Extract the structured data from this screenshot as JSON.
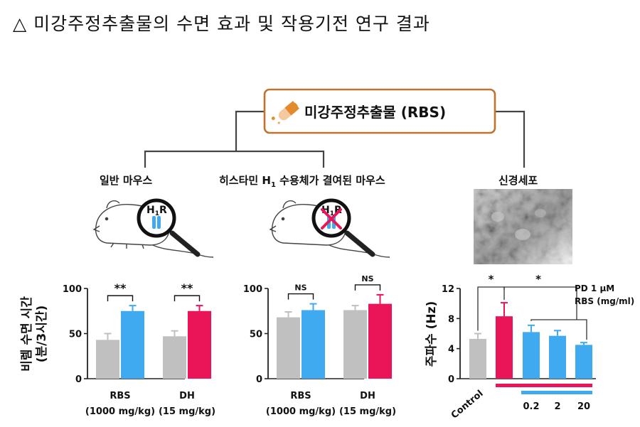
{
  "title": "△ 미강주정추출물의 수면 효과 및 작용기전 연구 결과",
  "diagram": {
    "root_label": "미강주정추출물 (RBS)",
    "branches": {
      "normal_mouse": "일반 마우스",
      "h1r_ko_prefix": "히스타민 H",
      "h1r_ko_sub": "1",
      "h1r_ko_suffix": " 수용체가 결여된 마우스",
      "neuron": "신경세포"
    },
    "receptor": {
      "main": "H",
      "sub": "1",
      "suffix": "R"
    }
  },
  "colors": {
    "gray": "#c0c0c0",
    "blue": "#3faaf0",
    "red": "#ea1459",
    "border": "#c0722e",
    "root_text": "#b25a16",
    "axis": "#222222"
  },
  "chart_data": [
    {
      "type": "bar",
      "ylabel_line1": "비렘 수면 시간",
      "ylabel_line2": "(분/3시간)",
      "yticks": [
        "0",
        "50",
        "100"
      ],
      "ylim": [
        0,
        100
      ],
      "groups": [
        {
          "label": "RBS",
          "sublabel": "(1000 mg/kg)",
          "sig": "**",
          "bars": [
            {
              "value": 43,
              "error": 7,
              "color": "gray"
            },
            {
              "value": 75,
              "error": 6,
              "color": "blue"
            }
          ]
        },
        {
          "label": "DH",
          "sublabel": "(15 mg/kg)",
          "sig": "**",
          "bars": [
            {
              "value": 47,
              "error": 6,
              "color": "gray"
            },
            {
              "value": 75,
              "error": 6,
              "color": "red"
            }
          ]
        }
      ]
    },
    {
      "type": "bar",
      "yticks": [
        "0",
        "50",
        "100"
      ],
      "ylim": [
        0,
        100
      ],
      "groups": [
        {
          "label": "RBS",
          "sublabel": "(1000 mg/kg)",
          "sig": "NS",
          "bars": [
            {
              "value": 68,
              "error": 6,
              "color": "gray"
            },
            {
              "value": 76,
              "error": 7,
              "color": "blue"
            }
          ]
        },
        {
          "label": "DH",
          "sublabel": "(15 mg/kg)",
          "sig": "NS",
          "bars": [
            {
              "value": 76,
              "error": 5,
              "color": "gray"
            },
            {
              "value": 83,
              "error": 10,
              "color": "red"
            }
          ]
        }
      ]
    },
    {
      "type": "bar",
      "ylabel": "주파수 (Hz)",
      "yticks": [
        "0",
        "4",
        "8",
        "12"
      ],
      "ylim": [
        0,
        12
      ],
      "legend": [
        "PD 1 μM",
        "RBS (mg/ml)"
      ],
      "categories": [
        "Control",
        "PD 1 μM",
        "0.2",
        "2",
        "20"
      ],
      "xlabels": [
        "Control",
        "0.2",
        "2",
        "20"
      ],
      "sig": [
        "*",
        "*"
      ],
      "bars": [
        {
          "value": 5.3,
          "error": 0.7,
          "color": "gray"
        },
        {
          "value": 8.3,
          "error": 1.8,
          "color": "red"
        },
        {
          "value": 6.2,
          "error": 0.9,
          "color": "blue"
        },
        {
          "value": 5.7,
          "error": 0.7,
          "color": "blue"
        },
        {
          "value": 4.5,
          "error": 0.3,
          "color": "blue"
        }
      ]
    }
  ]
}
